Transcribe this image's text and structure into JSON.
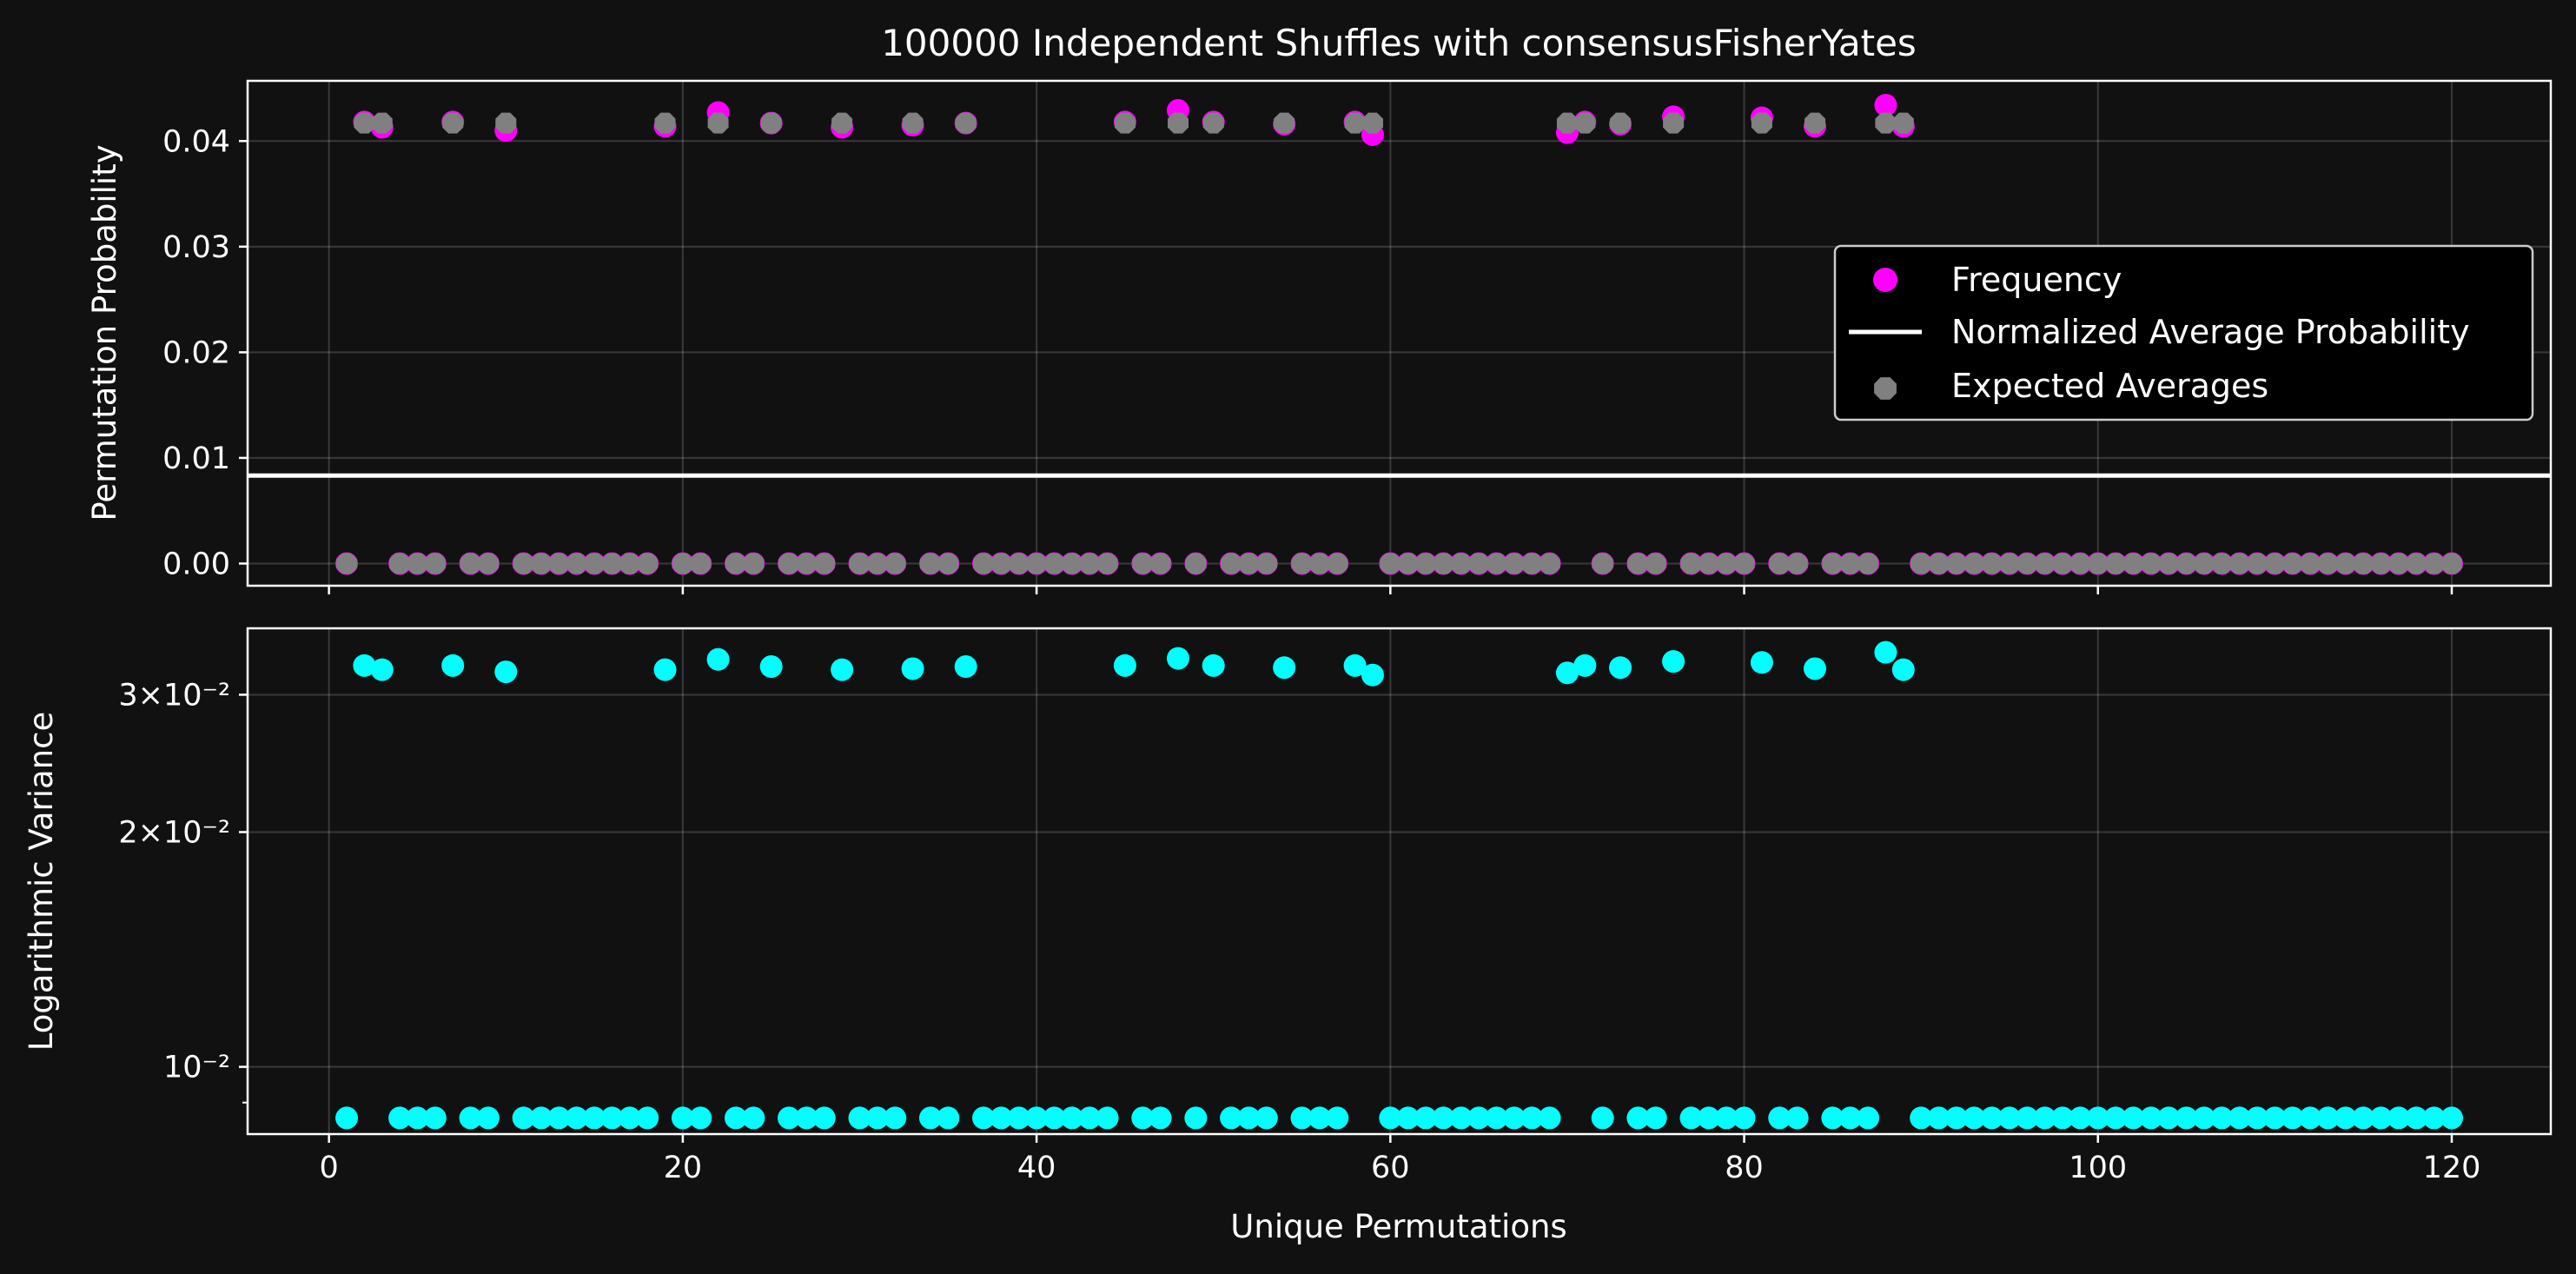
{
  "chart_data": [
    {
      "type": "scatter",
      "title": "100000 Independent Shuffles with consensusFisherYates",
      "xlabel": "",
      "ylabel": "Permutation Probability",
      "xlim": [
        -4.6,
        125.6
      ],
      "ylim": [
        -0.0021,
        0.0457
      ],
      "xticks": [
        0,
        20,
        40,
        60,
        80,
        100,
        120
      ],
      "yticks": [
        0.0,
        0.01,
        0.02,
        0.03,
        0.04
      ],
      "ytick_labels": [
        "0.00",
        "0.01",
        "0.02",
        "0.03",
        "0.04"
      ],
      "grid": true,
      "legend_position": "right",
      "legend": [
        "Frequency",
        "Normalized Average Probability",
        "Expected Averages"
      ],
      "colors": {
        "frequency": "#ff00ff",
        "average_line": "#ffffff",
        "expected": "#808080"
      },
      "series": [
        {
          "name": "Frequency",
          "marker": "circle",
          "x": [
            1,
            2,
            3,
            4,
            5,
            6,
            7,
            8,
            9,
            10,
            11,
            12,
            13,
            14,
            15,
            16,
            17,
            18,
            19,
            20,
            21,
            22,
            23,
            24,
            25,
            26,
            27,
            28,
            29,
            30,
            31,
            32,
            33,
            34,
            35,
            36,
            37,
            38,
            39,
            40,
            41,
            42,
            43,
            44,
            45,
            46,
            47,
            48,
            49,
            50,
            51,
            52,
            53,
            54,
            55,
            56,
            57,
            58,
            59,
            60,
            61,
            62,
            63,
            64,
            65,
            66,
            67,
            68,
            69,
            70,
            71,
            72,
            73,
            74,
            75,
            76,
            77,
            78,
            79,
            80,
            81,
            82,
            83,
            84,
            85,
            86,
            87,
            88,
            89,
            90,
            91,
            92,
            93,
            94,
            95,
            96,
            97,
            98,
            99,
            100,
            101,
            102,
            103,
            104,
            105,
            106,
            107,
            108,
            109,
            110,
            111,
            112,
            113,
            114,
            115,
            116,
            117,
            118,
            119,
            120
          ],
          "y": [
            0,
            0.0418,
            0.0413,
            0,
            0,
            0,
            0.0418,
            0,
            0,
            0.041,
            0,
            0,
            0,
            0,
            0,
            0,
            0,
            0,
            0.0414,
            0,
            0,
            0.0427,
            0,
            0,
            0.0417,
            0,
            0,
            0,
            0.0413,
            0,
            0,
            0,
            0.0415,
            0,
            0,
            0.0417,
            0,
            0,
            0,
            0,
            0,
            0,
            0,
            0,
            0.0418,
            0,
            0,
            0.0429,
            0,
            0.0418,
            0,
            0,
            0,
            0.0416,
            0,
            0,
            0,
            0.0418,
            0.0406,
            0,
            0,
            0,
            0,
            0,
            0,
            0,
            0,
            0,
            0,
            0.0408,
            0.0418,
            0,
            0.0416,
            0,
            0,
            0.0423,
            0,
            0,
            0,
            0,
            0.0422,
            0,
            0,
            0.0414,
            0,
            0,
            0,
            0.0434,
            0.0414,
            0,
            0,
            0,
            0,
            0,
            0,
            0,
            0,
            0,
            0,
            0,
            0,
            0,
            0,
            0,
            0,
            0,
            0,
            0,
            0,
            0,
            0,
            0,
            0,
            0,
            0,
            0,
            0,
            0,
            0,
            0
          ]
        },
        {
          "name": "Normalized Average Probability",
          "marker": "line",
          "y": 0.00833
        },
        {
          "name": "Expected Averages",
          "marker": "octagon",
          "x": [
            1,
            2,
            3,
            4,
            5,
            6,
            7,
            8,
            9,
            10,
            11,
            12,
            13,
            14,
            15,
            16,
            17,
            18,
            19,
            20,
            21,
            22,
            23,
            24,
            25,
            26,
            27,
            28,
            29,
            30,
            31,
            32,
            33,
            34,
            35,
            36,
            37,
            38,
            39,
            40,
            41,
            42,
            43,
            44,
            45,
            46,
            47,
            48,
            49,
            50,
            51,
            52,
            53,
            54,
            55,
            56,
            57,
            58,
            59,
            60,
            61,
            62,
            63,
            64,
            65,
            66,
            67,
            68,
            69,
            70,
            71,
            72,
            73,
            74,
            75,
            76,
            77,
            78,
            79,
            80,
            81,
            82,
            83,
            84,
            85,
            86,
            87,
            88,
            89,
            90,
            91,
            92,
            93,
            94,
            95,
            96,
            97,
            98,
            99,
            100,
            101,
            102,
            103,
            104,
            105,
            106,
            107,
            108,
            109,
            110,
            111,
            112,
            113,
            114,
            115,
            116,
            117,
            118,
            119,
            120
          ],
          "y": [
            0,
            0.0417,
            0.0417,
            0,
            0,
            0,
            0.0417,
            0,
            0,
            0.0417,
            0,
            0,
            0,
            0,
            0,
            0,
            0,
            0,
            0.0417,
            0,
            0,
            0.0417,
            0,
            0,
            0.0417,
            0,
            0,
            0,
            0.0417,
            0,
            0,
            0,
            0.0417,
            0,
            0,
            0.0417,
            0,
            0,
            0,
            0,
            0,
            0,
            0,
            0,
            0.0417,
            0,
            0,
            0.0417,
            0,
            0.0417,
            0,
            0,
            0,
            0.0417,
            0,
            0,
            0,
            0.0417,
            0.0417,
            0,
            0,
            0,
            0,
            0,
            0,
            0,
            0,
            0,
            0,
            0.0417,
            0.0417,
            0,
            0.0417,
            0,
            0,
            0.0417,
            0,
            0,
            0,
            0,
            0.0417,
            0,
            0,
            0.0417,
            0,
            0,
            0,
            0.0417,
            0.0417,
            0,
            0,
            0,
            0,
            0,
            0,
            0,
            0,
            0,
            0,
            0,
            0,
            0,
            0,
            0,
            0,
            0,
            0,
            0,
            0,
            0,
            0,
            0,
            0,
            0,
            0,
            0,
            0,
            0,
            0,
            0
          ]
        }
      ]
    },
    {
      "type": "scatter",
      "title": "",
      "xlabel": "Unique Permutations",
      "ylabel": "Logarithmic Variance",
      "xlim": [
        -4.6,
        125.6
      ],
      "ylim": [
        0.0082,
        0.0365
      ],
      "yscale": "log",
      "xticks": [
        0,
        20,
        40,
        60,
        80,
        100,
        120
      ],
      "yticks_major": [
        0.01,
        0.02,
        0.03
      ],
      "grid": true,
      "colors": {
        "variance": "#00ffff"
      },
      "series": [
        {
          "name": "",
          "marker": "circle",
          "x": [
            1,
            2,
            3,
            4,
            5,
            6,
            7,
            8,
            9,
            10,
            11,
            12,
            13,
            14,
            15,
            16,
            17,
            18,
            19,
            20,
            21,
            22,
            23,
            24,
            25,
            26,
            27,
            28,
            29,
            30,
            31,
            32,
            33,
            34,
            35,
            36,
            37,
            38,
            39,
            40,
            41,
            42,
            43,
            44,
            45,
            46,
            47,
            48,
            49,
            50,
            51,
            52,
            53,
            54,
            55,
            56,
            57,
            58,
            59,
            60,
            61,
            62,
            63,
            64,
            65,
            66,
            67,
            68,
            69,
            70,
            71,
            72,
            73,
            74,
            75,
            76,
            77,
            78,
            79,
            80,
            81,
            82,
            83,
            84,
            85,
            86,
            87,
            88,
            89,
            90,
            91,
            92,
            93,
            94,
            95,
            96,
            97,
            98,
            99,
            100,
            101,
            102,
            103,
            104,
            105,
            106,
            107,
            108,
            109,
            110,
            111,
            112,
            113,
            114,
            115,
            116,
            117,
            118,
            119,
            120
          ],
          "y": [
            0.0086,
            0.0327,
            0.0323,
            0.0086,
            0.0086,
            0.0086,
            0.0327,
            0.0086,
            0.0086,
            0.0321,
            0.0086,
            0.0086,
            0.0086,
            0.0086,
            0.0086,
            0.0086,
            0.0086,
            0.0086,
            0.0323,
            0.0086,
            0.0086,
            0.0333,
            0.0086,
            0.0086,
            0.0326,
            0.0086,
            0.0086,
            0.0086,
            0.0323,
            0.0086,
            0.0086,
            0.0086,
            0.0324,
            0.0086,
            0.0086,
            0.0326,
            0.0086,
            0.0086,
            0.0086,
            0.0086,
            0.0086,
            0.0086,
            0.0086,
            0.0086,
            0.0327,
            0.0086,
            0.0086,
            0.0334,
            0.0086,
            0.0327,
            0.0086,
            0.0086,
            0.0086,
            0.0325,
            0.0086,
            0.0086,
            0.0086,
            0.0327,
            0.0318,
            0.0086,
            0.0086,
            0.0086,
            0.0086,
            0.0086,
            0.0086,
            0.0086,
            0.0086,
            0.0086,
            0.0086,
            0.032,
            0.0327,
            0.0086,
            0.0325,
            0.0086,
            0.0086,
            0.0331,
            0.0086,
            0.0086,
            0.0086,
            0.0086,
            0.033,
            0.0086,
            0.0086,
            0.0324,
            0.0086,
            0.0086,
            0.0086,
            0.034,
            0.0323,
            0.0086,
            0.0086,
            0.0086,
            0.0086,
            0.0086,
            0.0086,
            0.0086,
            0.0086,
            0.0086,
            0.0086,
            0.0086,
            0.0086,
            0.0086,
            0.0086,
            0.0086,
            0.0086,
            0.0086,
            0.0086,
            0.0086,
            0.0086,
            0.0086,
            0.0086,
            0.0086,
            0.0086,
            0.0086,
            0.0086,
            0.0086,
            0.0086,
            0.0086,
            0.0086,
            0.0086
          ]
        }
      ]
    }
  ]
}
